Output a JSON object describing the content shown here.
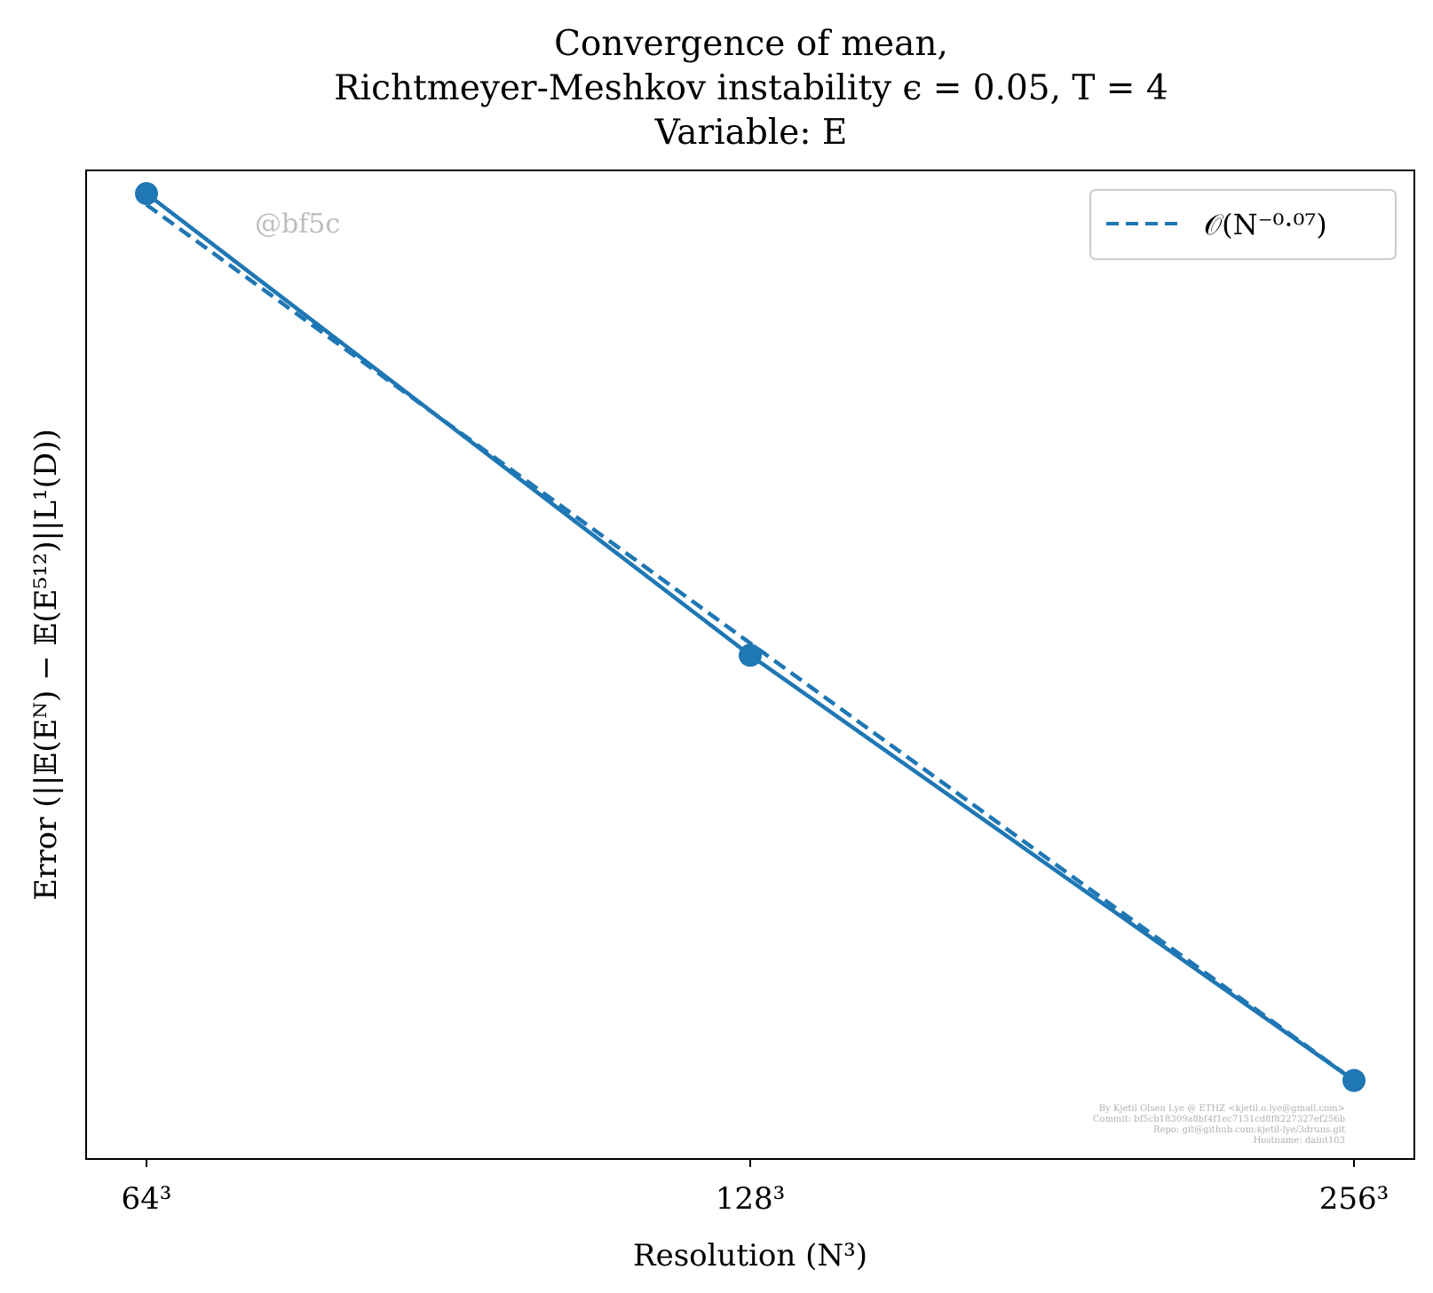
{
  "colors": {
    "series": "#1f77b4",
    "axes": "#000000",
    "watermark": "#bdbdbd",
    "legend_border": "#cccccc"
  },
  "chart_data": {
    "type": "line",
    "title": [
      "Convergence of mean,",
      "Richtmeyer-Meshkov instability ϵ = 0.05, T = 4",
      "Variable: E"
    ],
    "xlabel": "Resolution (N³)",
    "ylabel": "Error (||𝔼(Eᴺ) − 𝔼(E⁵¹²)||L¹(D))",
    "x_scale": "log2",
    "x_ticks": [
      64,
      128,
      256
    ],
    "x_tick_labels": [
      "64³",
      "128³",
      "256³"
    ],
    "ylim_rel": [
      0.84,
      1.0042
    ],
    "y_scale": "log",
    "y_ticks_visible": false,
    "series": [
      {
        "style": "solid",
        "markers": true,
        "x": [
          64,
          128,
          256
        ],
        "y_relative": [
          1.0,
          0.92,
          0.852
        ]
      },
      {
        "name": "𝒪(N⁻⁰·⁰⁷)",
        "style": "dashed",
        "markers": false,
        "x": [
          64,
          128,
          256
        ],
        "y_relative": [
          0.998,
          0.922,
          0.852
        ]
      }
    ],
    "legend": {
      "position": "top-right",
      "entries": [
        "𝒪(N⁻⁰·⁰⁷)"
      ]
    },
    "watermark": "@bf5c",
    "footer": [
      "By Kjetil Olsen Lye @ ETHZ <kjetil.o.lye@gmail.com>",
      "Commit: bf5cb18309a8bf4f1ec7151cd8f8227327ef256b",
      "Repo: git@github.com:kjetil-lye/3druns.git",
      "Hostname: daint103"
    ],
    "grid": false
  }
}
